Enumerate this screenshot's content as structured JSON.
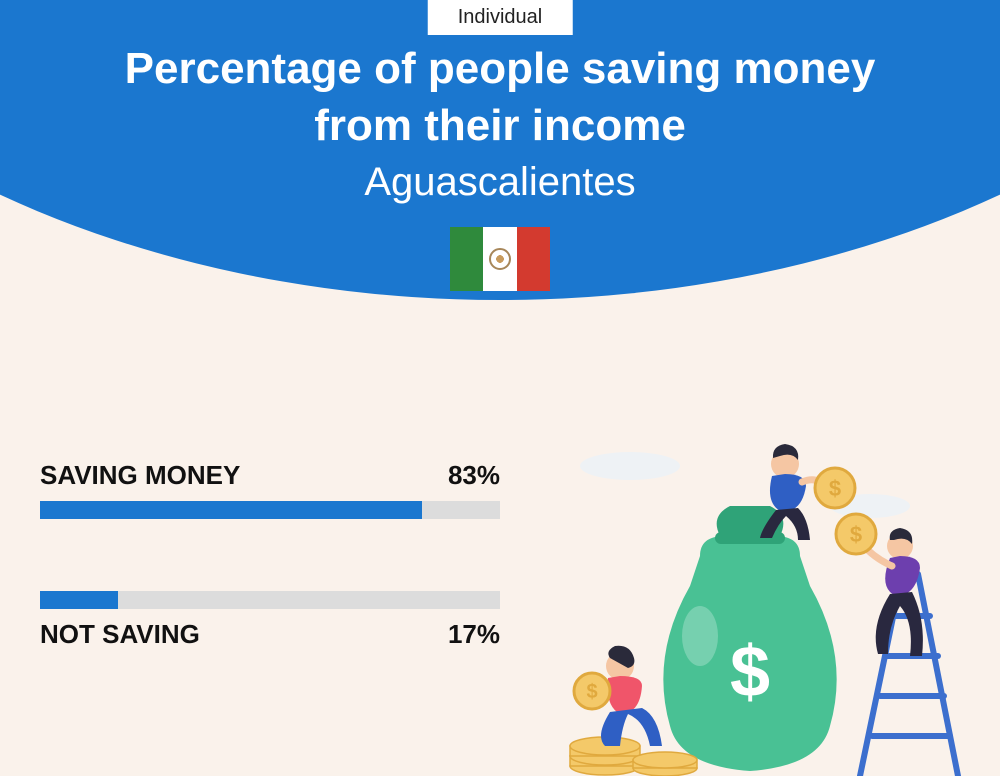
{
  "colors": {
    "page_bg": "#faf2eb",
    "arc_bg": "#1b77cf",
    "tag_text": "#222222",
    "title_text": "#ffffff",
    "bar_track": "#dcdcdc",
    "bar_fill": "#1b77cf",
    "label_text": "#111111",
    "flag_green": "#2f8a3c",
    "flag_white": "#ffffff",
    "flag_red": "#d33a2f"
  },
  "tag": {
    "label": "Individual"
  },
  "header": {
    "title_line1": "Percentage of people saving money",
    "title_line2": "from their income",
    "subtitle": "Aguascalientes"
  },
  "bars": [
    {
      "label": "SAVING MONEY",
      "value": 83,
      "value_text": "83%",
      "label_position": "above"
    },
    {
      "label": "NOT SAVING",
      "value": 17,
      "value_text": "17%",
      "label_position": "below"
    }
  ],
  "illustration": {
    "bag_color": "#49c194",
    "bag_shadow": "#2fa378",
    "coin_fill": "#f4c969",
    "coin_stroke": "#e0a93e",
    "person1_top": "#2f5fc4",
    "person1_bottom": "#29283f",
    "person2_top": "#f0556a",
    "person2_bottom": "#2f5fc4",
    "person3_top": "#6d3fae",
    "person3_bottom": "#29283f",
    "skin": "#f5c6a3",
    "hair": "#2a2a3a",
    "ladder": "#3c6fce",
    "cloud": "#eef2f5"
  }
}
